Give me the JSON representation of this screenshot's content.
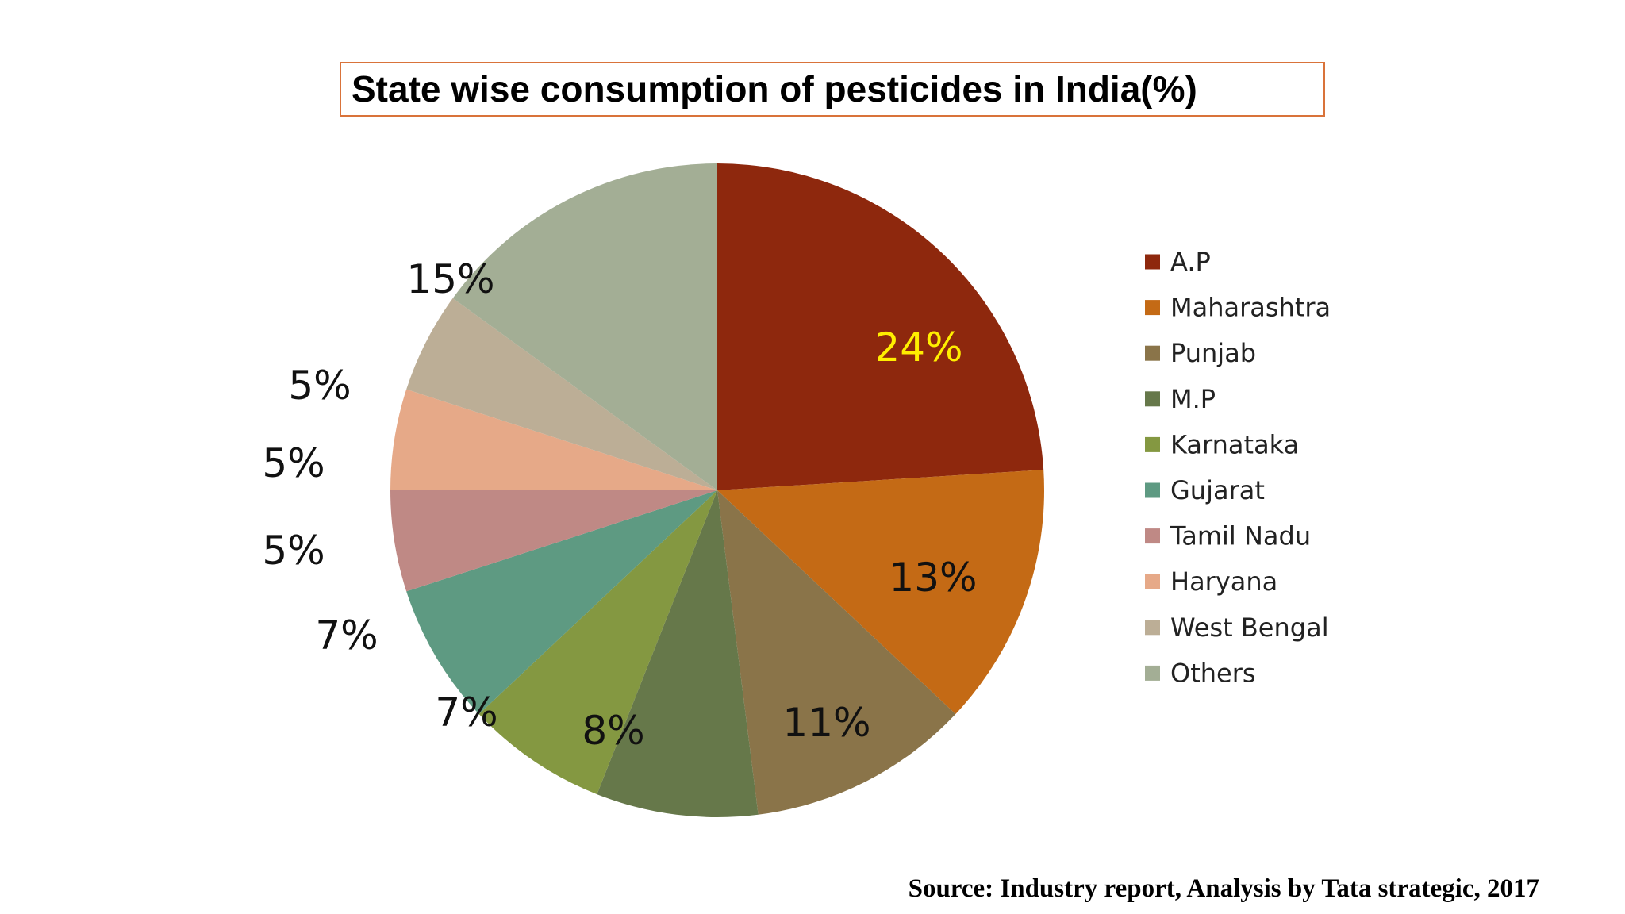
{
  "chart_data": {
    "type": "pie",
    "title": "State wise consumption of pesticides in India(%)",
    "source": "Source: Industry report, Analysis by Tata strategic, 2017",
    "legend_position": "right",
    "start_angle_deg": 0,
    "direction": "clockwise",
    "slices": [
      {
        "label": "A.P",
        "value": 24,
        "display": "24%",
        "color": "#8E280D",
        "label_color": "#FFEE00"
      },
      {
        "label": "Maharashtra",
        "value": 13,
        "display": "13%",
        "color": "#C46A15",
        "label_color": "#111111"
      },
      {
        "label": "Punjab",
        "value": 11,
        "display": "11%",
        "color": "#8A7449",
        "label_color": "#111111"
      },
      {
        "label": "M.P",
        "value": 8,
        "display": "8%",
        "color": "#66784A",
        "label_color": "#111111"
      },
      {
        "label": "Karnataka",
        "value": 7,
        "display": "7%",
        "color": "#849841",
        "label_color": "#111111"
      },
      {
        "label": "Gujarat",
        "value": 7,
        "display": "7%",
        "color": "#5E9A82",
        "label_color": "#111111"
      },
      {
        "label": "Tamil Nadu",
        "value": 5,
        "display": "5%",
        "color": "#BF8985",
        "label_color": "#111111"
      },
      {
        "label": "Haryana",
        "value": 5,
        "display": "5%",
        "color": "#E6A988",
        "label_color": "#111111"
      },
      {
        "label": "West Bengal",
        "value": 5,
        "display": "5%",
        "color": "#BCAE96",
        "label_color": "#111111"
      },
      {
        "label": "Others",
        "value": 15,
        "display": "15%",
        "color": "#A3AE95",
        "label_color": "#111111"
      }
    ]
  }
}
